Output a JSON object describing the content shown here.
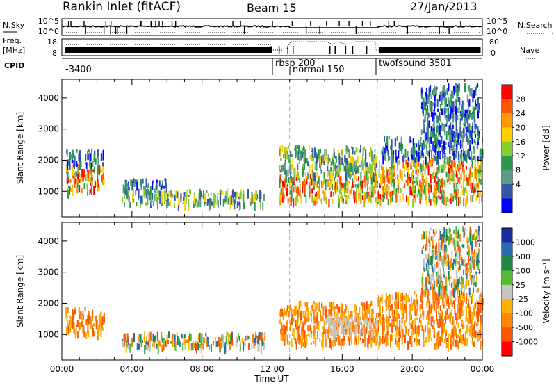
{
  "header": {
    "station": "Rankin Inlet (fitACF)",
    "beam": "Beam 15",
    "date": "27/Jan/2013"
  },
  "noise_panel": {
    "left_label": "N.Sky",
    "right_label": "N.Search",
    "left_ticks": [
      "10^5",
      "10^0"
    ],
    "right_ticks": [
      "10^5",
      "10^0"
    ]
  },
  "freq_panel": {
    "left_label_1": "Freq.",
    "left_label_2": "[MHz]",
    "left_ticks": [
      "18",
      "8"
    ],
    "right_label": "Nave",
    "right_ticks": [
      "80",
      "0"
    ]
  },
  "cpid_panel": {
    "label": "CPID",
    "segments": [
      {
        "label": "-3400",
        "start_hour": 0.0
      },
      {
        "label": "rbsp 200",
        "start_hour": 12.0
      },
      {
        "label": "normal 150",
        "start_hour": 13.0
      },
      {
        "label": "twofsound 3501",
        "start_hour": 18.0
      }
    ]
  },
  "x_axis": {
    "title": "Time UT",
    "ticks": [
      "00:00",
      "04:00",
      "08:00",
      "12:00",
      "16:00",
      "20:00",
      "00:00"
    ],
    "range_hours": [
      0,
      24
    ]
  },
  "power_panel": {
    "ylabel": "Slant Range [km]",
    "yticks": [
      "1000",
      "2000",
      "3000",
      "4000"
    ],
    "colorbar_label": "Power [dB]",
    "colorbar_ticks": [
      "28",
      "24",
      "20",
      "16",
      "12",
      "8",
      "4"
    ],
    "colors": [
      "#ff0000",
      "#ff5500",
      "#ff9900",
      "#ffd000",
      "#88cc33",
      "#2a9a4a",
      "#5a9a88",
      "#3355aa",
      "#0000ff"
    ]
  },
  "velocity_panel": {
    "ylabel": "Slant Range [km]",
    "yticks": [
      "1000",
      "2000",
      "3000",
      "4000"
    ],
    "colorbar_label": "Velocity [m s⁻¹]",
    "colorbar_ticks": [
      "1000",
      "500",
      "100",
      "25",
      "-25",
      "-100",
      "-500",
      "-1000"
    ],
    "colors": [
      "#1a2aa0",
      "#2a6ab0",
      "#1e8844",
      "#55bb33",
      "#c6c6c0",
      "#ffb000",
      "#ff8800",
      "#ff5500",
      "#ff0000"
    ]
  },
  "chart_data": {
    "type": "heatmap",
    "x_unit": "hours UT",
    "y_unit": "slant range km",
    "xlim": [
      0,
      24
    ],
    "ylim": [
      180,
      4600
    ],
    "mode_change_hours": [
      12.0,
      13.0,
      18.0
    ],
    "power_regions": [
      {
        "t0": 0.2,
        "t1": 2.4,
        "r0": 950,
        "r1": 1800,
        "level": "high"
      },
      {
        "t0": 0.2,
        "t1": 2.4,
        "r0": 1800,
        "r1": 2300,
        "level": "low"
      },
      {
        "t0": 3.4,
        "t1": 11.6,
        "r0": 550,
        "r1": 1000,
        "level": "mid"
      },
      {
        "t0": 3.4,
        "t1": 6.0,
        "r0": 1000,
        "r1": 1350,
        "level": "low"
      },
      {
        "t0": 12.4,
        "t1": 18.0,
        "r0": 650,
        "r1": 1500,
        "level": "high"
      },
      {
        "t0": 12.4,
        "t1": 18.0,
        "r0": 1500,
        "r1": 2400,
        "level": "mid"
      },
      {
        "t0": 18.0,
        "t1": 24.0,
        "r0": 650,
        "r1": 2000,
        "level": "high"
      },
      {
        "t0": 18.2,
        "t1": 24.0,
        "r0": 2000,
        "r1": 2700,
        "level": "low"
      },
      {
        "t0": 20.5,
        "t1": 23.8,
        "r0": 2700,
        "r1": 4400,
        "level": "low"
      }
    ],
    "velocity_regions": [
      {
        "t0": 0.2,
        "t1": 2.4,
        "r0": 950,
        "r1": 1800,
        "sign": "negative"
      },
      {
        "t0": 3.4,
        "t1": 11.6,
        "r0": 550,
        "r1": 1000,
        "sign": "mixed"
      },
      {
        "t0": 12.4,
        "t1": 18.0,
        "r0": 650,
        "r1": 2000,
        "sign": "negative"
      },
      {
        "t0": 15.0,
        "t1": 18.0,
        "r0": 1000,
        "r1": 1500,
        "sign": "near-zero"
      },
      {
        "t0": 18.0,
        "t1": 24.0,
        "r0": 650,
        "r1": 2300,
        "sign": "negative"
      },
      {
        "t0": 20.5,
        "t1": 23.8,
        "r0": 2300,
        "r1": 4400,
        "sign": "mixed"
      }
    ]
  }
}
